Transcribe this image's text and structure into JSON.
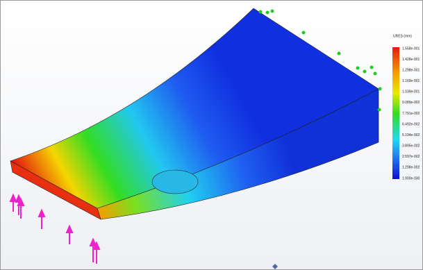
{
  "legend": {
    "title": "URES (mm)",
    "labels": [
      "1.558e-001",
      "1.428e-001",
      "1.298e-001",
      "1.169e-001",
      "1.039e-001",
      "9.089e-002",
      "7.791e-002",
      "6.492e-002",
      "5.194e-002",
      "3.895e-002",
      "2.597e-002",
      "1.298e-002",
      "1.000e-030"
    ]
  }
}
